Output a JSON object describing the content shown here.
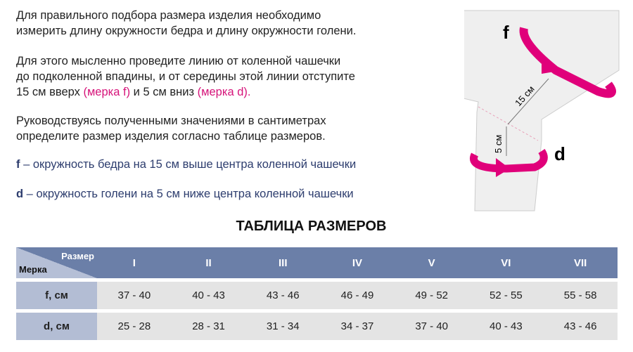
{
  "intro": {
    "line1": "Для правильного подбора размера изделия необходимо",
    "line2": "измерить длину окружности бедра и длину окружности голени."
  },
  "instr": {
    "line1": "Для этого мысленно проведите линию от коленной чашечки",
    "line2": "до подколенной впадины, и от середины этой линии отступите",
    "line3a": "15 см вверх ",
    "line3b": "(мерка f)",
    "line3c": " и 5 см вниз ",
    "line3d": "(мерка d)."
  },
  "guide": {
    "line1": "Руководствуясь полученными значениями в сантиметрах",
    "line2": "определите размер изделия согласно таблице размеров."
  },
  "defs": {
    "f_key": "f",
    "f_text": " – окружность бедра на 15 см выше центра коленной чашечки",
    "d_key": "d",
    "d_text": " – окружность голени на 5 см ниже центра коленной чашечки"
  },
  "diagram": {
    "f": "f",
    "d": "d",
    "up": "15 см",
    "down": "5 см",
    "accent": "#e0007a"
  },
  "table": {
    "title": "ТАБЛИЦА РАЗМЕРОВ",
    "corner_top": "Размер",
    "corner_bottom": "Мерка",
    "sizes": [
      "I",
      "II",
      "III",
      "IV",
      "V",
      "VI",
      "VII"
    ],
    "rows": [
      {
        "label": "f, см",
        "values": [
          "37 - 40",
          "40 - 43",
          "43 - 46",
          "46 - 49",
          "49 - 52",
          "52 - 55",
          "55 - 58"
        ]
      },
      {
        "label": "d, см",
        "values": [
          "25 - 28",
          "28 - 31",
          "31 - 34",
          "34 - 37",
          "37 - 40",
          "40 - 43",
          "43 - 46"
        ]
      }
    ]
  }
}
